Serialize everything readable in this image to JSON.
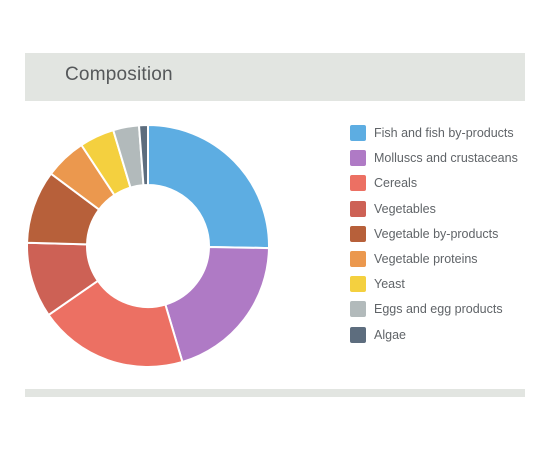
{
  "header": {
    "title": "Composition"
  },
  "chart_data": {
    "type": "pie",
    "title": "Composition",
    "legend_position": "right",
    "donut": true,
    "categories": [
      "Fish and fish by-products",
      "Molluscs and crustaceans",
      "Cereals",
      "Vegetables",
      "Vegetable by-products",
      "Vegetable proteins",
      "Yeast",
      "Eggs and egg products",
      "Algae"
    ],
    "values": [
      25.6,
      20.4,
      20.2,
      10.2,
      9.9,
      5.6,
      4.7,
      3.5,
      1.2
    ],
    "colors": [
      "#5dade2",
      "#af7ac5",
      "#ec7063",
      "#cd6155",
      "#b7603a",
      "#eb984e",
      "#f4d03f",
      "#b2babb",
      "#5d6d7e"
    ]
  }
}
